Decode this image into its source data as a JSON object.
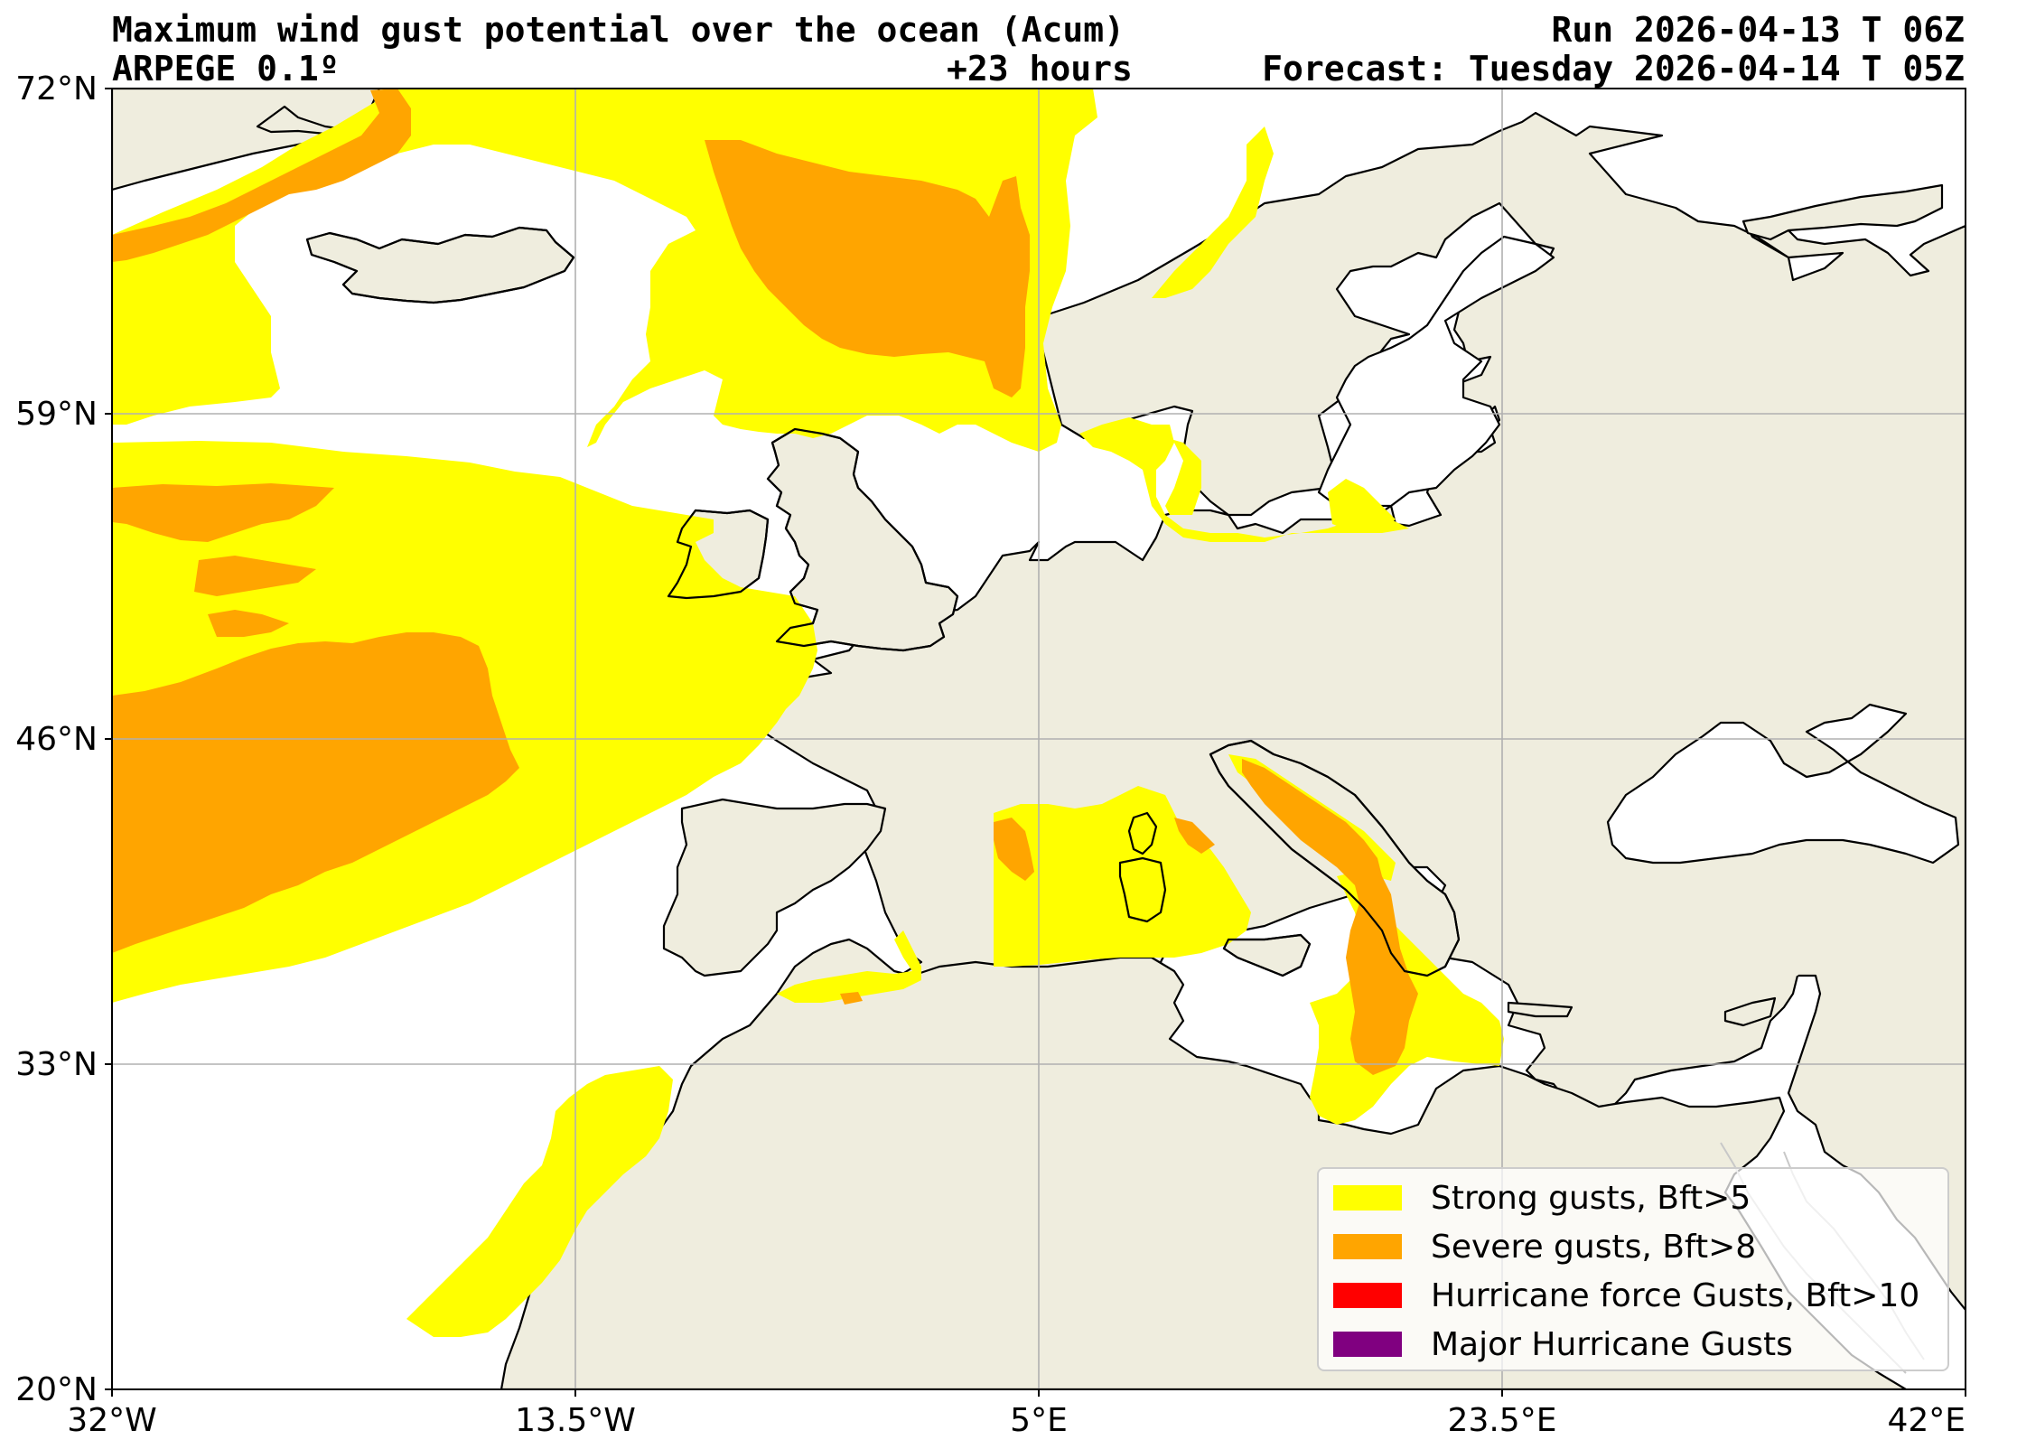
{
  "header": {
    "title": "Maximum wind gust potential over the ocean (Acum)",
    "model": "ARPEGE 0.1º",
    "lead_time": "+23 hours",
    "run": "Run 2026-04-13 T 06Z",
    "forecast": "Forecast: Tuesday 2026-04-14 T 05Z"
  },
  "axes": {
    "lat_labels": [
      "72°N",
      "59°N",
      "46°N",
      "33°N",
      "20°N"
    ],
    "lon_labels": [
      "32°W",
      "13.5°W",
      "5°E",
      "23.5°E",
      "42°E"
    ],
    "lat_range": [
      20,
      72
    ],
    "lon_range": [
      -32,
      42
    ],
    "grid": true
  },
  "legend": {
    "placement": "bottom-right",
    "items": [
      {
        "label": "Strong gusts, Bft>5",
        "color": "#ffff00"
      },
      {
        "label": "Severe gusts, Bft>8",
        "color": "#ffa500"
      },
      {
        "label": "Hurricane force Gusts, Bft>10",
        "color": "#ff0000"
      },
      {
        "label": "Major Hurricane Gusts",
        "color": "#800080"
      }
    ]
  },
  "colors": {
    "land": "#efedde",
    "sea": "#ffffff",
    "coastline": "#000000",
    "grid": "#b0b0b0"
  }
}
